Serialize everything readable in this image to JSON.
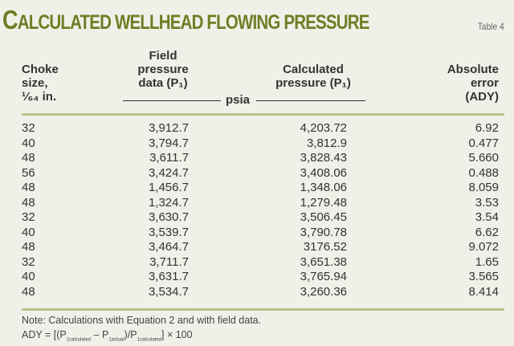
{
  "title_first": "C",
  "title_rest": "ALCULATED WELLHEAD FLOWING PRESSURE",
  "table_label": "Table 4",
  "headers": {
    "choke": [
      "Choke",
      "size,",
      "¹⁄₆₄ in."
    ],
    "field": [
      "Field",
      "pressure",
      "data (P₁)"
    ],
    "unit": "psia",
    "calculated": [
      "Calculated",
      "pressure (P₁)"
    ],
    "error": [
      "Absolute",
      "error",
      "(ADY)"
    ]
  },
  "rows": [
    [
      "32",
      "3,912.7",
      "4,203.72",
      "6.92"
    ],
    [
      "40",
      "3,794.7",
      "3,812.9",
      "0.477"
    ],
    [
      "48",
      "3,611.7",
      "3,828.43",
      "5.660"
    ],
    [
      "56",
      "3,424.7",
      "3,408.06",
      "0.488"
    ],
    [
      "48",
      "1,456.7",
      "1,348.06",
      "8.059"
    ],
    [
      "48",
      "1,324.7",
      "1,279.48",
      "3.53"
    ],
    [
      "32",
      "3,630.7",
      "3,506.45",
      "3.54"
    ],
    [
      "40",
      "3,539.7",
      "3,790.78",
      "6.62"
    ],
    [
      "48",
      "3,464.7",
      "3176.52",
      "9.072"
    ],
    [
      "32",
      "3,711.7",
      "3,651.38",
      "1.65"
    ],
    [
      "40",
      "3,631.7",
      "3,765.94",
      "3.565"
    ],
    [
      "48",
      "3,534.7",
      "3,260.36",
      "8.414"
    ]
  ],
  "note": "Note: Calculations with Equation 2 and with field data.",
  "formula": {
    "a": "ADY = [(P",
    "s1": "1calculated",
    "b": " – P",
    "s2": "1actual",
    "c": ")/P",
    "s3": "1calculated",
    "d": "] × 100"
  },
  "colors": {
    "title": "#6f7d25",
    "rule": "#b8c28d",
    "background": "#f0f0e8"
  }
}
